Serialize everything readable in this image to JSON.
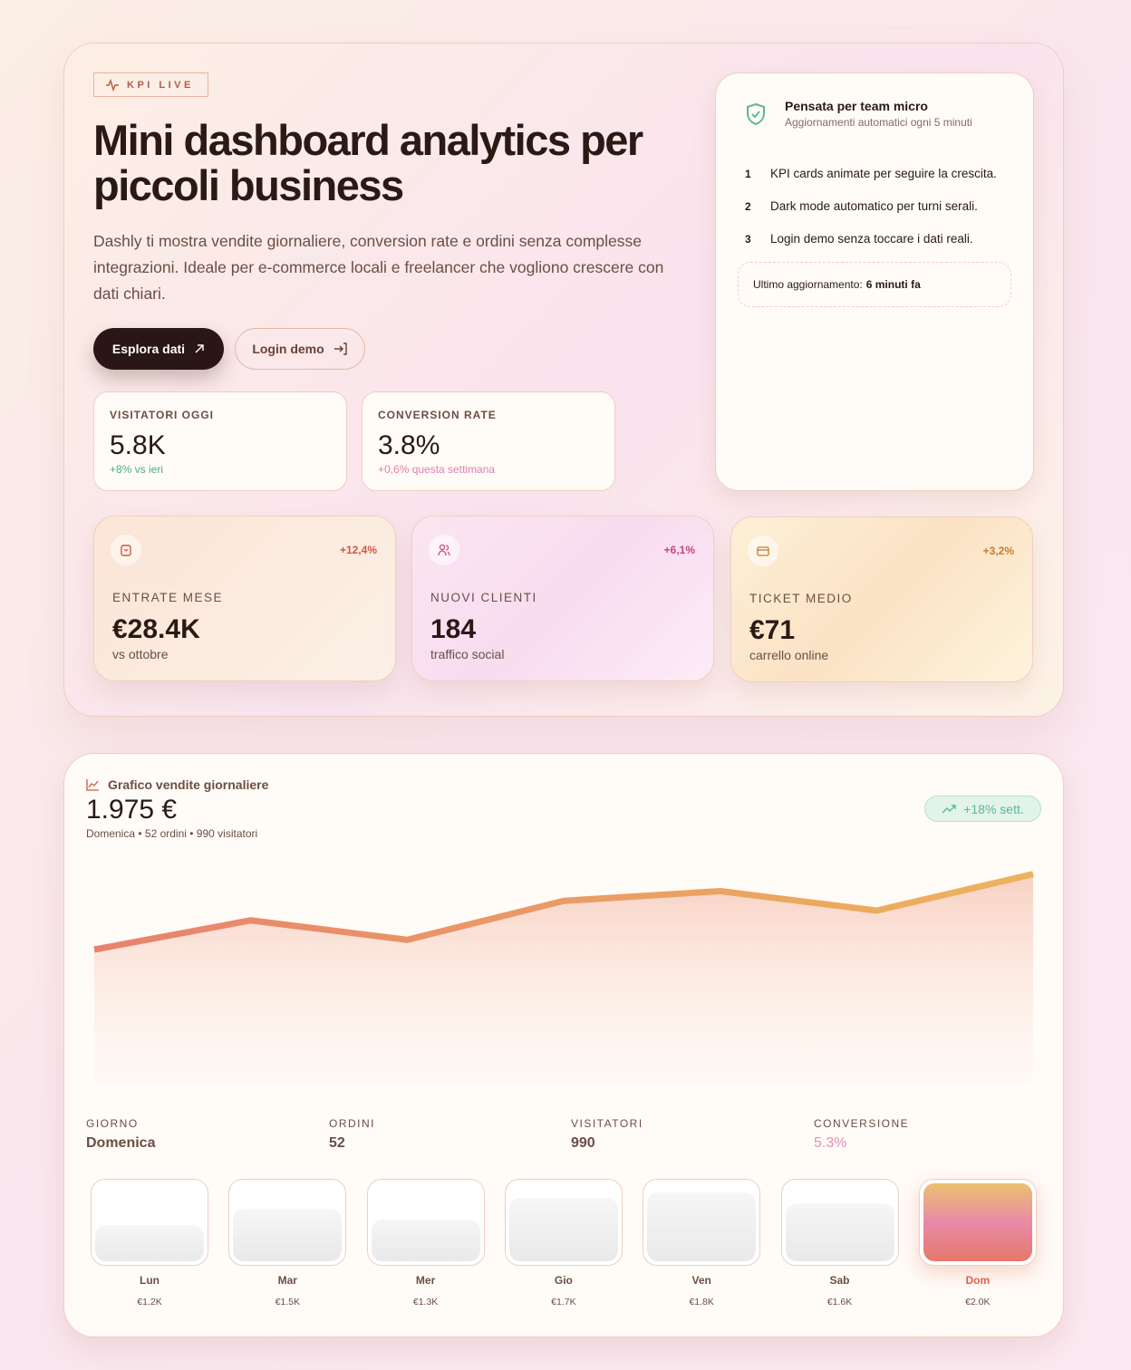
{
  "hero": {
    "badge": "KPI LIVE",
    "title": "Mini dashboard analytics per piccoli business",
    "lead": "Dashly ti mostra vendite giornaliere, conversion rate e ordini senza complesse integrazioni. Ideale per e-commerce locali e freelancer che vogliono crescere con dati chiari.",
    "primary_button": "Esplora dati",
    "secondary_button": "Login demo",
    "kpis": [
      {
        "label": "VISITATORI OGGI",
        "value": "5.8K",
        "sub": "+8% vs ieri",
        "color": "#4caf84"
      },
      {
        "label": "CONVERSION RATE",
        "value": "3.8%",
        "sub": "+0,6% questa settimana",
        "color": "#e07fb0"
      }
    ]
  },
  "side": {
    "title": "Pensata per team micro",
    "subtitle": "Aggiornamenti automatici ogni 5 minuti",
    "items": [
      {
        "n": "1",
        "text": "KPI cards animate per seguire la crescita."
      },
      {
        "n": "2",
        "text": "Dark mode automatico per turni serali."
      },
      {
        "n": "3",
        "text": "Login demo senza toccare i dati reali."
      }
    ],
    "update_label": "Ultimo aggiornamento:",
    "update_value": "6 minuti fa"
  },
  "cards": [
    {
      "icon": "shopping-bag-icon",
      "pct": "+12,4%",
      "label": "ENTRATE MESE",
      "value": "€28.4K",
      "sub": "vs ottobre",
      "color": "#d0563e"
    },
    {
      "icon": "users-icon",
      "pct": "+6,1%",
      "label": "NUOVI CLIENTI",
      "value": "184",
      "sub": "traffico social",
      "color": "#c9437f"
    },
    {
      "icon": "credit-card-icon",
      "pct": "+3,2%",
      "label": "TICKET MEDIO",
      "value": "€71",
      "sub": "carrello online",
      "color": "#c97a2e"
    }
  ],
  "chart": {
    "title": "Grafico vendite giornaliere",
    "total": "1.975 €",
    "meta": "Domenica • 52 ordini • 990 visitatori",
    "trend": "+18% sett.",
    "stats": [
      {
        "label": "GIORNO",
        "value": "Domenica"
      },
      {
        "label": "ORDINI",
        "value": "52"
      },
      {
        "label": "VISITATORI",
        "value": "990"
      },
      {
        "label": "CONVERSIONE",
        "value": "5.3%"
      }
    ],
    "selected_day": "Dom"
  },
  "chart_data": {
    "type": "line",
    "categories": [
      "Lun",
      "Mar",
      "Mer",
      "Gio",
      "Ven",
      "Sab",
      "Dom"
    ],
    "labels": [
      "€1.2K",
      "€1.5K",
      "€1.3K",
      "€1.7K",
      "€1.8K",
      "€1.6K",
      "€2.0K"
    ],
    "values": [
      1200,
      1500,
      1300,
      1700,
      1800,
      1600,
      1975
    ],
    "line_colors": [
      "#e8826e",
      "#ecb45c"
    ]
  }
}
